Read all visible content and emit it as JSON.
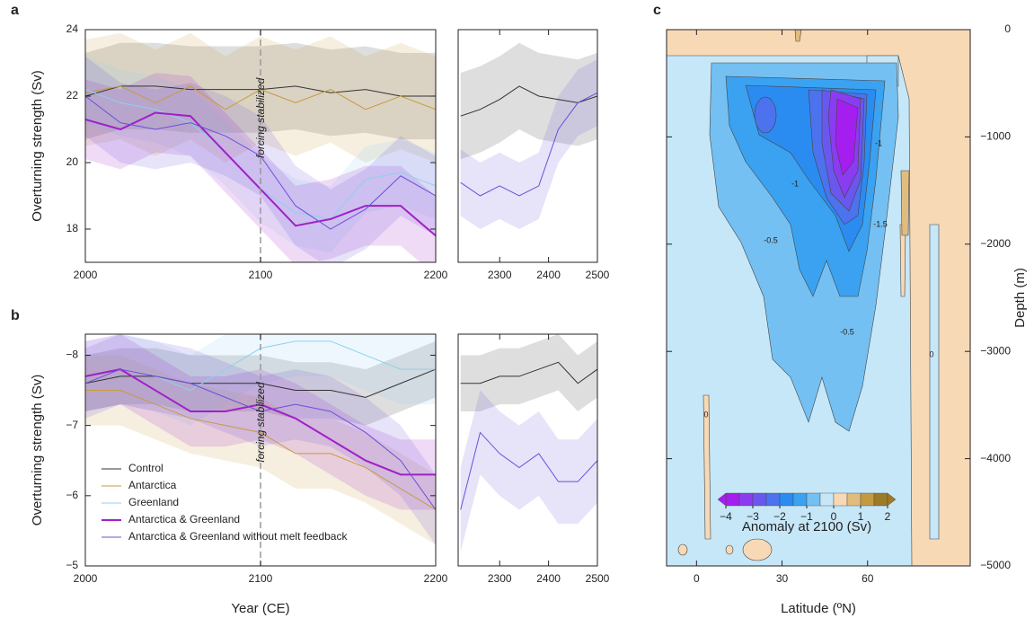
{
  "chart_data": [
    {
      "type": "line",
      "panel_label": "a",
      "ylabel": "Overturning strength (Sv)",
      "xlim": [
        2000,
        2200
      ],
      "xticks": [
        2000,
        2100,
        2200
      ],
      "ylim": [
        17,
        24
      ],
      "yticks": [
        18,
        20,
        22,
        24
      ],
      "annotation": {
        "x": 2100,
        "text": "forcing stabilized"
      },
      "x": [
        2000,
        2020,
        2040,
        2060,
        2080,
        2100,
        2120,
        2140,
        2160,
        2180,
        2200
      ],
      "series": [
        {
          "color": "#333333",
          "linewidth": 1,
          "values": [
            22.0,
            22.3,
            22.3,
            22.2,
            22.2,
            22.2,
            22.3,
            22.1,
            22.2,
            22.0,
            22.0
          ],
          "lower": [
            20.7,
            21.0,
            21.0,
            20.9,
            20.9,
            20.9,
            21.0,
            20.8,
            20.9,
            20.7,
            20.7
          ],
          "upper": [
            23.3,
            23.6,
            23.6,
            23.5,
            23.5,
            23.5,
            23.6,
            23.4,
            23.5,
            23.3,
            23.3
          ]
        },
        {
          "color": "#c89a3c",
          "linewidth": 1,
          "values": [
            22.1,
            22.3,
            21.8,
            22.3,
            21.6,
            22.2,
            21.8,
            22.2,
            21.6,
            22.0,
            21.6
          ],
          "lower": [
            20.5,
            20.7,
            20.2,
            20.7,
            20.0,
            20.6,
            20.2,
            20.6,
            20.0,
            20.4,
            20.0
          ],
          "upper": [
            23.7,
            23.9,
            23.4,
            23.9,
            23.2,
            23.8,
            23.4,
            23.8,
            23.2,
            23.6,
            23.2
          ]
        },
        {
          "color": "#8fd0f0",
          "linewidth": 1,
          "values": [
            22.2,
            21.8,
            21.6,
            21.2,
            20.3,
            19.2,
            18.5,
            18.3,
            19.5,
            19.7,
            19.3
          ],
          "lower": [
            21.2,
            20.8,
            20.6,
            20.2,
            19.3,
            18.2,
            17.5,
            17.3,
            18.5,
            18.7,
            18.3
          ],
          "upper": [
            23.2,
            22.8,
            22.6,
            22.2,
            21.3,
            20.2,
            19.5,
            19.3,
            20.5,
            20.7,
            20.3
          ]
        },
        {
          "color": "#a020c8",
          "linewidth": 2,
          "values": [
            21.3,
            21.0,
            21.5,
            21.4,
            20.3,
            19.2,
            18.1,
            18.3,
            18.7,
            18.7,
            17.8
          ],
          "lower": [
            20.1,
            19.8,
            20.3,
            20.2,
            19.1,
            18.0,
            16.9,
            17.1,
            17.5,
            17.5,
            16.6
          ],
          "upper": [
            22.5,
            22.2,
            22.7,
            22.6,
            21.5,
            20.4,
            19.3,
            19.5,
            19.9,
            19.9,
            19.0
          ]
        },
        {
          "color": "#6a50d8",
          "linewidth": 1,
          "values": [
            22.0,
            21.2,
            21.0,
            21.2,
            20.8,
            20.2,
            18.7,
            18.0,
            18.6,
            19.6,
            19.0
          ],
          "lower": [
            20.8,
            20.0,
            19.8,
            20.0,
            19.6,
            19.0,
            17.5,
            16.8,
            17.4,
            18.4,
            17.8
          ],
          "upper": [
            23.2,
            22.4,
            22.2,
            22.4,
            22.0,
            21.4,
            19.9,
            19.2,
            19.8,
            20.8,
            20.2
          ]
        }
      ]
    },
    {
      "type": "line",
      "xlim": [
        2215,
        2500
      ],
      "xticks": [
        2300,
        2400,
        2500
      ],
      "ylim": [
        17,
        24
      ],
      "x": [
        2220,
        2260,
        2300,
        2340,
        2380,
        2420,
        2460,
        2500
      ],
      "series": [
        {
          "color": "#333333",
          "linewidth": 1,
          "values": [
            21.4,
            21.6,
            21.9,
            22.3,
            22.0,
            21.9,
            21.8,
            22.0
          ],
          "lower": [
            20.1,
            20.3,
            20.6,
            21.0,
            20.7,
            20.6,
            20.5,
            20.7
          ],
          "upper": [
            22.7,
            22.9,
            23.2,
            23.6,
            23.3,
            23.2,
            23.1,
            23.3
          ]
        },
        {
          "color": "#6a50d8",
          "linewidth": 1,
          "values": [
            19.4,
            19.0,
            19.3,
            19.0,
            19.3,
            21.0,
            21.8,
            22.1
          ],
          "lower": [
            18.4,
            18.0,
            18.3,
            18.0,
            18.3,
            20.0,
            20.8,
            21.1
          ],
          "upper": [
            20.4,
            20.0,
            20.3,
            20.0,
            20.3,
            22.0,
            22.8,
            23.1
          ]
        }
      ]
    },
    {
      "type": "line",
      "panel_label": "b",
      "ylabel": "Overturning strength (Sv)",
      "xlabel": "Year (CE)",
      "xlim": [
        2000,
        2200
      ],
      "xticks": [
        2000,
        2100,
        2200
      ],
      "ylim": [
        -5,
        -8.3
      ],
      "yticks": [
        {
          "value": -8,
          "label": "−8"
        },
        {
          "value": -7,
          "label": "−7"
        },
        {
          "value": -6,
          "label": "−6"
        },
        {
          "value": -5,
          "label": "−5"
        }
      ],
      "annotation": {
        "x": 2100,
        "text": "forcing stabilized"
      },
      "legend": "lower left",
      "x": [
        2000,
        2020,
        2040,
        2060,
        2080,
        2100,
        2120,
        2140,
        2160,
        2180,
        2200
      ],
      "series": [
        {
          "name": "Control",
          "color": "#333333",
          "linewidth": 1,
          "values": [
            -7.6,
            -7.7,
            -7.7,
            -7.6,
            -7.6,
            -7.6,
            -7.5,
            -7.5,
            -7.4,
            -7.6,
            -7.8
          ],
          "lower": [
            -8.0,
            -8.1,
            -8.1,
            -8.0,
            -8.0,
            -8.0,
            -7.9,
            -7.9,
            -7.8,
            -8.0,
            -8.2
          ],
          "upper": [
            -7.2,
            -7.3,
            -7.3,
            -7.2,
            -7.2,
            -7.2,
            -7.1,
            -7.1,
            -7.0,
            -7.2,
            -7.4
          ]
        },
        {
          "name": "Antarctica",
          "color": "#c89a3c",
          "linewidth": 1,
          "values": [
            -7.5,
            -7.5,
            -7.3,
            -7.1,
            -7.0,
            -6.9,
            -6.6,
            -6.6,
            -6.4,
            -6.1,
            -5.8
          ],
          "lower": [
            -8.0,
            -8.0,
            -7.8,
            -7.6,
            -7.5,
            -7.4,
            -7.1,
            -7.1,
            -6.9,
            -6.6,
            -6.3
          ],
          "upper": [
            -7.0,
            -7.0,
            -6.8,
            -6.6,
            -6.5,
            -6.4,
            -6.1,
            -6.1,
            -5.9,
            -5.6,
            -5.3
          ]
        },
        {
          "name": "Greenland",
          "color": "#8fd0f0",
          "linewidth": 1,
          "values": [
            -7.7,
            -7.8,
            -7.7,
            -7.5,
            -7.8,
            -8.1,
            -8.2,
            -8.2,
            -8.0,
            -7.8,
            -7.8
          ],
          "lower": [
            -8.2,
            -8.3,
            -8.2,
            -8.0,
            -8.3,
            -8.6,
            -8.7,
            -8.7,
            -8.5,
            -8.3,
            -8.3
          ],
          "upper": [
            -7.2,
            -7.3,
            -7.2,
            -7.0,
            -7.3,
            -7.6,
            -7.7,
            -7.7,
            -7.5,
            -7.3,
            -7.3
          ]
        },
        {
          "name": "Antarctica & Greenland",
          "color": "#a020c8",
          "linewidth": 2,
          "values": [
            -7.7,
            -7.8,
            -7.5,
            -7.2,
            -7.2,
            -7.3,
            -7.1,
            -6.8,
            -6.5,
            -6.3,
            -6.3
          ],
          "lower": [
            -8.2,
            -8.3,
            -8.0,
            -7.7,
            -7.7,
            -7.8,
            -7.6,
            -7.3,
            -7.0,
            -6.8,
            -6.8
          ],
          "upper": [
            -7.2,
            -7.3,
            -7.0,
            -6.7,
            -6.7,
            -6.8,
            -6.6,
            -6.3,
            -6.0,
            -5.8,
            -5.8
          ]
        },
        {
          "name": "Antarctica & Greenland without melt feedback",
          "color": "#6a50d8",
          "linewidth": 1,
          "values": [
            -7.6,
            -7.8,
            -7.7,
            -7.6,
            -7.4,
            -7.2,
            -7.3,
            -7.2,
            -6.9,
            -6.5,
            -5.8
          ],
          "lower": [
            -8.1,
            -8.3,
            -8.2,
            -8.1,
            -7.9,
            -7.7,
            -7.8,
            -7.7,
            -7.4,
            -7.0,
            -6.3
          ],
          "upper": [
            -7.1,
            -7.3,
            -7.2,
            -7.1,
            -6.9,
            -6.7,
            -6.8,
            -6.7,
            -6.4,
            -6.0,
            -5.3
          ]
        }
      ]
    },
    {
      "type": "line",
      "xlim": [
        2215,
        2500
      ],
      "xticks": [
        2300,
        2400,
        2500
      ],
      "ylim": [
        -5,
        -8.3
      ],
      "x": [
        2220,
        2260,
        2300,
        2340,
        2380,
        2420,
        2460,
        2500
      ],
      "series": [
        {
          "color": "#333333",
          "linewidth": 1,
          "values": [
            -7.6,
            -7.6,
            -7.7,
            -7.7,
            -7.8,
            -7.9,
            -7.6,
            -7.8
          ],
          "lower": [
            -8.0,
            -8.0,
            -8.1,
            -8.1,
            -8.2,
            -8.3,
            -8.0,
            -8.2
          ],
          "upper": [
            -7.2,
            -7.2,
            -7.3,
            -7.3,
            -7.4,
            -7.5,
            -7.2,
            -7.4
          ]
        },
        {
          "color": "#6a50d8",
          "linewidth": 1,
          "values": [
            -5.8,
            -6.9,
            -6.6,
            -6.4,
            -6.6,
            -6.2,
            -6.2,
            -6.5
          ],
          "lower": [
            -6.4,
            -7.5,
            -7.2,
            -7.0,
            -7.2,
            -6.8,
            -6.8,
            -7.1
          ],
          "upper": [
            -5.2,
            -6.3,
            -6.0,
            -5.8,
            -6.0,
            -5.6,
            -5.6,
            -5.9
          ]
        }
      ]
    },
    {
      "type": "contour",
      "panel_label": "c",
      "xlabel": "Latitude (ºN)",
      "ylabel": "Depth (m)",
      "xlim": [
        -10.5,
        96
      ],
      "xticks": [
        0,
        30,
        60
      ],
      "ylim": [
        -5000,
        0
      ],
      "yticks": [
        {
          "value": -5000,
          "label": "−5000"
        },
        {
          "value": -4000,
          "label": "−4000"
        },
        {
          "value": -3000,
          "label": "−3000"
        },
        {
          "value": -2000,
          "label": "−2000"
        },
        {
          "value": -1000,
          "label": "−1000"
        },
        0
      ],
      "colorbar_label": "Anomaly at 2100 (Sv)",
      "levels": [
        -4,
        -3.5,
        -3,
        -2.5,
        -2,
        -1.5,
        -1,
        -0.5,
        0,
        0.5,
        1,
        1.5,
        2
      ],
      "colors": [
        "#a41ef0",
        "#8a3cf0",
        "#6a58ee",
        "#4c72ee",
        "#2a8cf0",
        "#3aa2f0",
        "#74c0f2",
        "#c6e7f8",
        "#f8d9b6",
        "#e0bd7e",
        "#c49a40",
        "#9c7a28"
      ],
      "colorbar_ticks": [
        {
          "value": -4,
          "label": "−4"
        },
        {
          "value": -3,
          "label": "−3"
        },
        {
          "value": -2,
          "label": "−2"
        },
        {
          "value": -1,
          "label": "−1"
        },
        0,
        1,
        2
      ],
      "contour_labels": [
        -0.5,
        -1,
        -1.5,
        -0.5,
        0,
        0,
        -1
      ]
    }
  ]
}
